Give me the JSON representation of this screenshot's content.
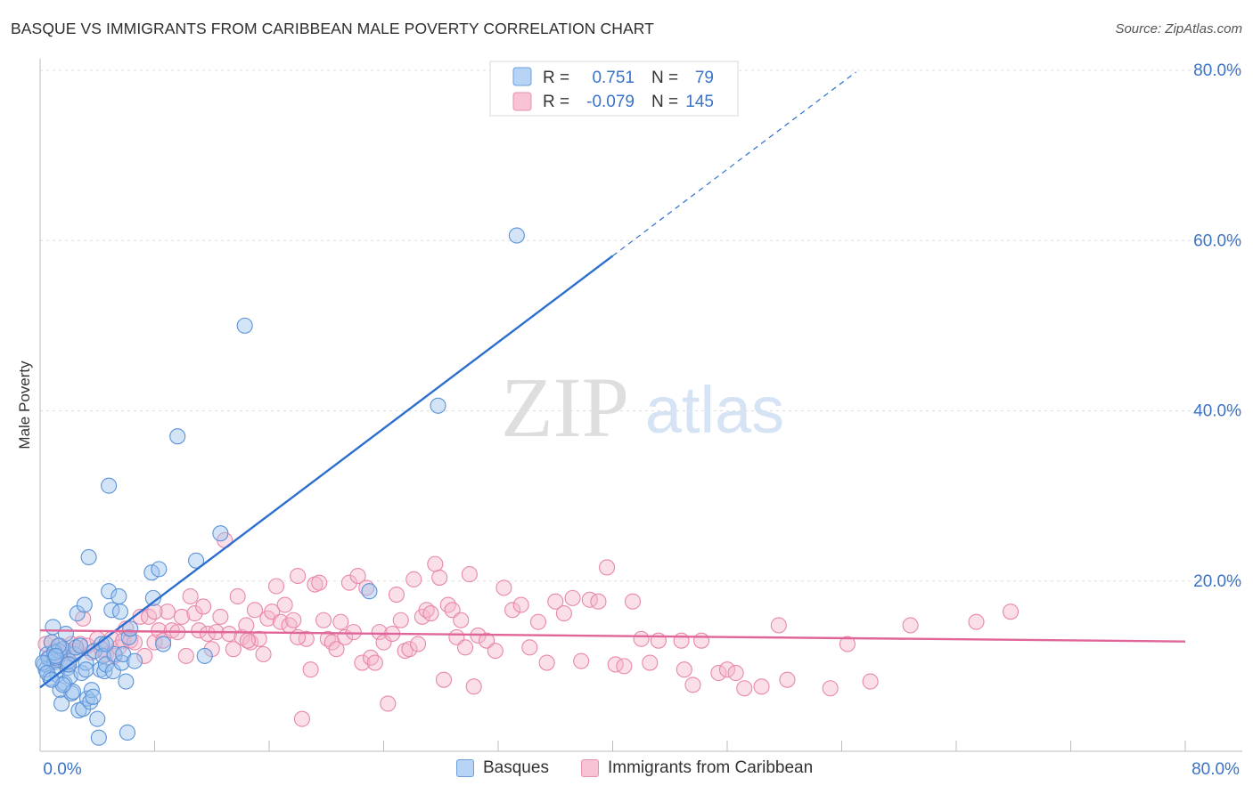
{
  "title": "BASQUE VS IMMIGRANTS FROM CARIBBEAN MALE POVERTY CORRELATION CHART",
  "source": "Source: ZipAtlas.com",
  "watermark": {
    "zip": "ZIP",
    "atlas": "atlas"
  },
  "colors": {
    "blue_fill": "#9ec4ee",
    "blue_stroke": "#5b93d8",
    "blue_line": "#2c6fd0",
    "pink_fill": "#f5b6cc",
    "pink_stroke": "#e888a9",
    "pink_line": "#e0669a",
    "axis_label": "#3a73c7",
    "grid": "#dddddd"
  },
  "legend_top": {
    "rows": [
      {
        "r_label": "R =",
        "r_value": "0.751",
        "n_label": "N =",
        "n_value": "79"
      },
      {
        "r_label": "R =",
        "r_value": "-0.079",
        "n_label": "N =",
        "n_value": "145"
      }
    ]
  },
  "legend_bottom": {
    "items": [
      {
        "label": "Basques"
      },
      {
        "label": "Immigrants from Caribbean"
      }
    ]
  },
  "chart_data": {
    "type": "scatter",
    "xlabel": "",
    "ylabel": "Male Poverty",
    "xlim": [
      0,
      80
    ],
    "ylim": [
      0,
      80
    ],
    "x_tick_labels": [
      "0.0%",
      "80.0%"
    ],
    "y_tick_labels": [
      "20.0%",
      "40.0%",
      "60.0%",
      "80.0%"
    ],
    "y_ticks": [
      20,
      40,
      60,
      80
    ],
    "grid": "horizontal",
    "series": [
      {
        "name": "Basques",
        "R": 0.751,
        "N": 79,
        "trend": {
          "x0": 0,
          "y0": 7.5,
          "x1": 40,
          "y1": 58.2,
          "dashed_to_x": 57,
          "dashed_to_y": 79.8
        },
        "points": [
          [
            0.3,
            10.2
          ],
          [
            0.4,
            9.6
          ],
          [
            0.5,
            11.4
          ],
          [
            0.6,
            10.9
          ],
          [
            0.7,
            8.6
          ],
          [
            0.8,
            12.8
          ],
          [
            0.9,
            14.6
          ],
          [
            1.0,
            10.5
          ],
          [
            1.1,
            11.0
          ],
          [
            1.2,
            9.0
          ],
          [
            1.3,
            11.8
          ],
          [
            1.4,
            7.2
          ],
          [
            1.5,
            5.6
          ],
          [
            1.6,
            12.0
          ],
          [
            1.7,
            8.0
          ],
          [
            1.8,
            13.8
          ],
          [
            1.9,
            9.8
          ],
          [
            2.0,
            10.6
          ],
          [
            2.1,
            8.8
          ],
          [
            2.2,
            6.8
          ],
          [
            2.3,
            7.0
          ],
          [
            2.4,
            11.4
          ],
          [
            2.5,
            12.2
          ],
          [
            2.6,
            16.2
          ],
          [
            2.7,
            4.8
          ],
          [
            2.8,
            12.4
          ],
          [
            2.9,
            9.2
          ],
          [
            3.0,
            5.0
          ],
          [
            3.1,
            17.2
          ],
          [
            3.2,
            10.4
          ],
          [
            3.3,
            6.2
          ],
          [
            3.4,
            22.8
          ],
          [
            3.5,
            5.8
          ],
          [
            3.6,
            7.2
          ],
          [
            3.7,
            6.4
          ],
          [
            3.8,
            11.8
          ],
          [
            4.0,
            3.8
          ],
          [
            4.1,
            1.6
          ],
          [
            4.2,
            9.6
          ],
          [
            4.3,
            12.6
          ],
          [
            4.4,
            11.2
          ],
          [
            4.5,
            9.4
          ],
          [
            4.6,
            10.2
          ],
          [
            4.8,
            31.2
          ],
          [
            4.8,
            18.8
          ],
          [
            5.0,
            16.6
          ],
          [
            5.1,
            9.4
          ],
          [
            5.2,
            11.4
          ],
          [
            5.5,
            18.2
          ],
          [
            5.6,
            16.4
          ],
          [
            5.7,
            10.4
          ],
          [
            5.8,
            11.4
          ],
          [
            6.0,
            8.2
          ],
          [
            6.1,
            2.2
          ],
          [
            6.2,
            13.4
          ],
          [
            6.3,
            14.4
          ],
          [
            6.6,
            10.6
          ],
          [
            7.8,
            21.0
          ],
          [
            7.9,
            18.0
          ],
          [
            8.3,
            21.4
          ],
          [
            8.6,
            12.6
          ],
          [
            9.6,
            37.0
          ],
          [
            10.9,
            22.4
          ],
          [
            12.6,
            25.6
          ],
          [
            14.3,
            50.0
          ],
          [
            23.0,
            18.8
          ],
          [
            27.8,
            40.6
          ],
          [
            33.3,
            60.6
          ],
          [
            0.2,
            10.4
          ],
          [
            0.5,
            9.2
          ],
          [
            1.0,
            11.6
          ],
          [
            1.3,
            12.4
          ],
          [
            1.6,
            7.8
          ],
          [
            2.0,
            10.2
          ],
          [
            0.8,
            8.4
          ],
          [
            1.1,
            11.2
          ],
          [
            3.2,
            9.6
          ],
          [
            4.6,
            12.6
          ],
          [
            11.5,
            11.2
          ]
        ]
      },
      {
        "name": "Immigrants from Caribbean",
        "R": -0.079,
        "N": 145,
        "trend": {
          "x0": 0,
          "y0": 14.2,
          "x1": 80,
          "y1": 12.9
        },
        "points": [
          [
            0.4,
            12.6
          ],
          [
            0.6,
            11.0
          ],
          [
            0.8,
            12.8
          ],
          [
            1.0,
            11.8
          ],
          [
            1.2,
            10.8
          ],
          [
            1.4,
            12.4
          ],
          [
            1.6,
            11.6
          ],
          [
            1.8,
            10.2
          ],
          [
            2.0,
            11.8
          ],
          [
            2.2,
            12.6
          ],
          [
            2.5,
            11.8
          ],
          [
            2.8,
            12.6
          ],
          [
            3.0,
            15.6
          ],
          [
            3.3,
            12.4
          ],
          [
            3.6,
            11.6
          ],
          [
            4.0,
            13.2
          ],
          [
            4.3,
            12.0
          ],
          [
            4.6,
            11.4
          ],
          [
            5.0,
            13.2
          ],
          [
            5.2,
            11.2
          ],
          [
            5.5,
            12.2
          ],
          [
            5.8,
            13.0
          ],
          [
            6.0,
            14.4
          ],
          [
            6.3,
            13.0
          ],
          [
            6.6,
            12.8
          ],
          [
            7.0,
            15.8
          ],
          [
            7.3,
            11.2
          ],
          [
            7.6,
            15.8
          ],
          [
            8.0,
            12.8
          ],
          [
            8.3,
            14.2
          ],
          [
            8.6,
            13.0
          ],
          [
            8.9,
            16.4
          ],
          [
            9.2,
            14.2
          ],
          [
            9.6,
            14.0
          ],
          [
            9.9,
            15.8
          ],
          [
            10.2,
            11.2
          ],
          [
            10.5,
            18.2
          ],
          [
            10.8,
            16.2
          ],
          [
            11.1,
            14.2
          ],
          [
            11.4,
            17.0
          ],
          [
            11.7,
            13.8
          ],
          [
            12.0,
            12.0
          ],
          [
            12.3,
            14.0
          ],
          [
            12.6,
            15.8
          ],
          [
            12.9,
            24.8
          ],
          [
            13.2,
            13.8
          ],
          [
            13.5,
            12.0
          ],
          [
            13.8,
            18.2
          ],
          [
            14.1,
            13.4
          ],
          [
            14.4,
            14.8
          ],
          [
            14.7,
            12.8
          ],
          [
            15.0,
            16.6
          ],
          [
            15.3,
            13.2
          ],
          [
            15.6,
            11.4
          ],
          [
            15.9,
            15.6
          ],
          [
            16.2,
            16.4
          ],
          [
            16.5,
            19.4
          ],
          [
            16.8,
            15.2
          ],
          [
            17.1,
            17.2
          ],
          [
            17.4,
            14.8
          ],
          [
            17.7,
            15.4
          ],
          [
            18.0,
            20.6
          ],
          [
            18.3,
            3.8
          ],
          [
            18.6,
            13.2
          ],
          [
            18.9,
            9.6
          ],
          [
            19.2,
            19.6
          ],
          [
            19.5,
            19.8
          ],
          [
            19.8,
            15.4
          ],
          [
            20.1,
            13.2
          ],
          [
            20.4,
            12.8
          ],
          [
            20.7,
            12.0
          ],
          [
            21.0,
            15.2
          ],
          [
            21.3,
            13.4
          ],
          [
            21.6,
            19.8
          ],
          [
            21.9,
            14.0
          ],
          [
            22.2,
            20.6
          ],
          [
            22.5,
            10.4
          ],
          [
            22.8,
            19.2
          ],
          [
            23.1,
            11.0
          ],
          [
            23.4,
            10.4
          ],
          [
            23.7,
            14.0
          ],
          [
            24.0,
            12.8
          ],
          [
            24.3,
            5.6
          ],
          [
            24.6,
            13.8
          ],
          [
            24.9,
            18.4
          ],
          [
            25.2,
            15.4
          ],
          [
            25.5,
            11.8
          ],
          [
            25.8,
            12.0
          ],
          [
            26.1,
            20.2
          ],
          [
            26.4,
            12.6
          ],
          [
            26.7,
            15.8
          ],
          [
            27.0,
            16.6
          ],
          [
            27.3,
            16.2
          ],
          [
            27.6,
            22.0
          ],
          [
            27.9,
            20.4
          ],
          [
            28.2,
            8.4
          ],
          [
            28.5,
            17.2
          ],
          [
            28.8,
            16.6
          ],
          [
            29.1,
            13.4
          ],
          [
            29.4,
            15.4
          ],
          [
            29.7,
            12.2
          ],
          [
            30.0,
            20.8
          ],
          [
            30.3,
            7.6
          ],
          [
            30.6,
            13.6
          ],
          [
            31.2,
            13.0
          ],
          [
            31.8,
            11.8
          ],
          [
            32.4,
            19.2
          ],
          [
            33.0,
            16.6
          ],
          [
            33.6,
            17.2
          ],
          [
            34.2,
            12.2
          ],
          [
            34.8,
            15.2
          ],
          [
            35.4,
            10.4
          ],
          [
            36.0,
            17.6
          ],
          [
            36.6,
            16.2
          ],
          [
            37.2,
            18.0
          ],
          [
            37.8,
            10.6
          ],
          [
            38.4,
            17.8
          ],
          [
            39.0,
            17.6
          ],
          [
            39.6,
            21.6
          ],
          [
            40.2,
            10.2
          ],
          [
            40.8,
            10.0
          ],
          [
            41.4,
            17.6
          ],
          [
            42.0,
            13.2
          ],
          [
            42.6,
            10.4
          ],
          [
            43.2,
            13.0
          ],
          [
            45.0,
            9.6
          ],
          [
            45.6,
            7.8
          ],
          [
            46.2,
            13.0
          ],
          [
            47.4,
            9.2
          ],
          [
            48.0,
            9.6
          ],
          [
            48.6,
            9.2
          ],
          [
            49.2,
            7.4
          ],
          [
            50.4,
            7.6
          ],
          [
            51.6,
            14.8
          ],
          [
            52.2,
            8.4
          ],
          [
            55.2,
            7.4
          ],
          [
            56.4,
            12.6
          ],
          [
            58.0,
            8.2
          ],
          [
            60.8,
            14.8
          ],
          [
            65.4,
            15.2
          ],
          [
            67.8,
            16.4
          ],
          [
            14.5,
            13.0
          ],
          [
            18.0,
            13.4
          ],
          [
            8.0,
            16.4
          ],
          [
            44.8,
            13.0
          ]
        ]
      }
    ]
  }
}
